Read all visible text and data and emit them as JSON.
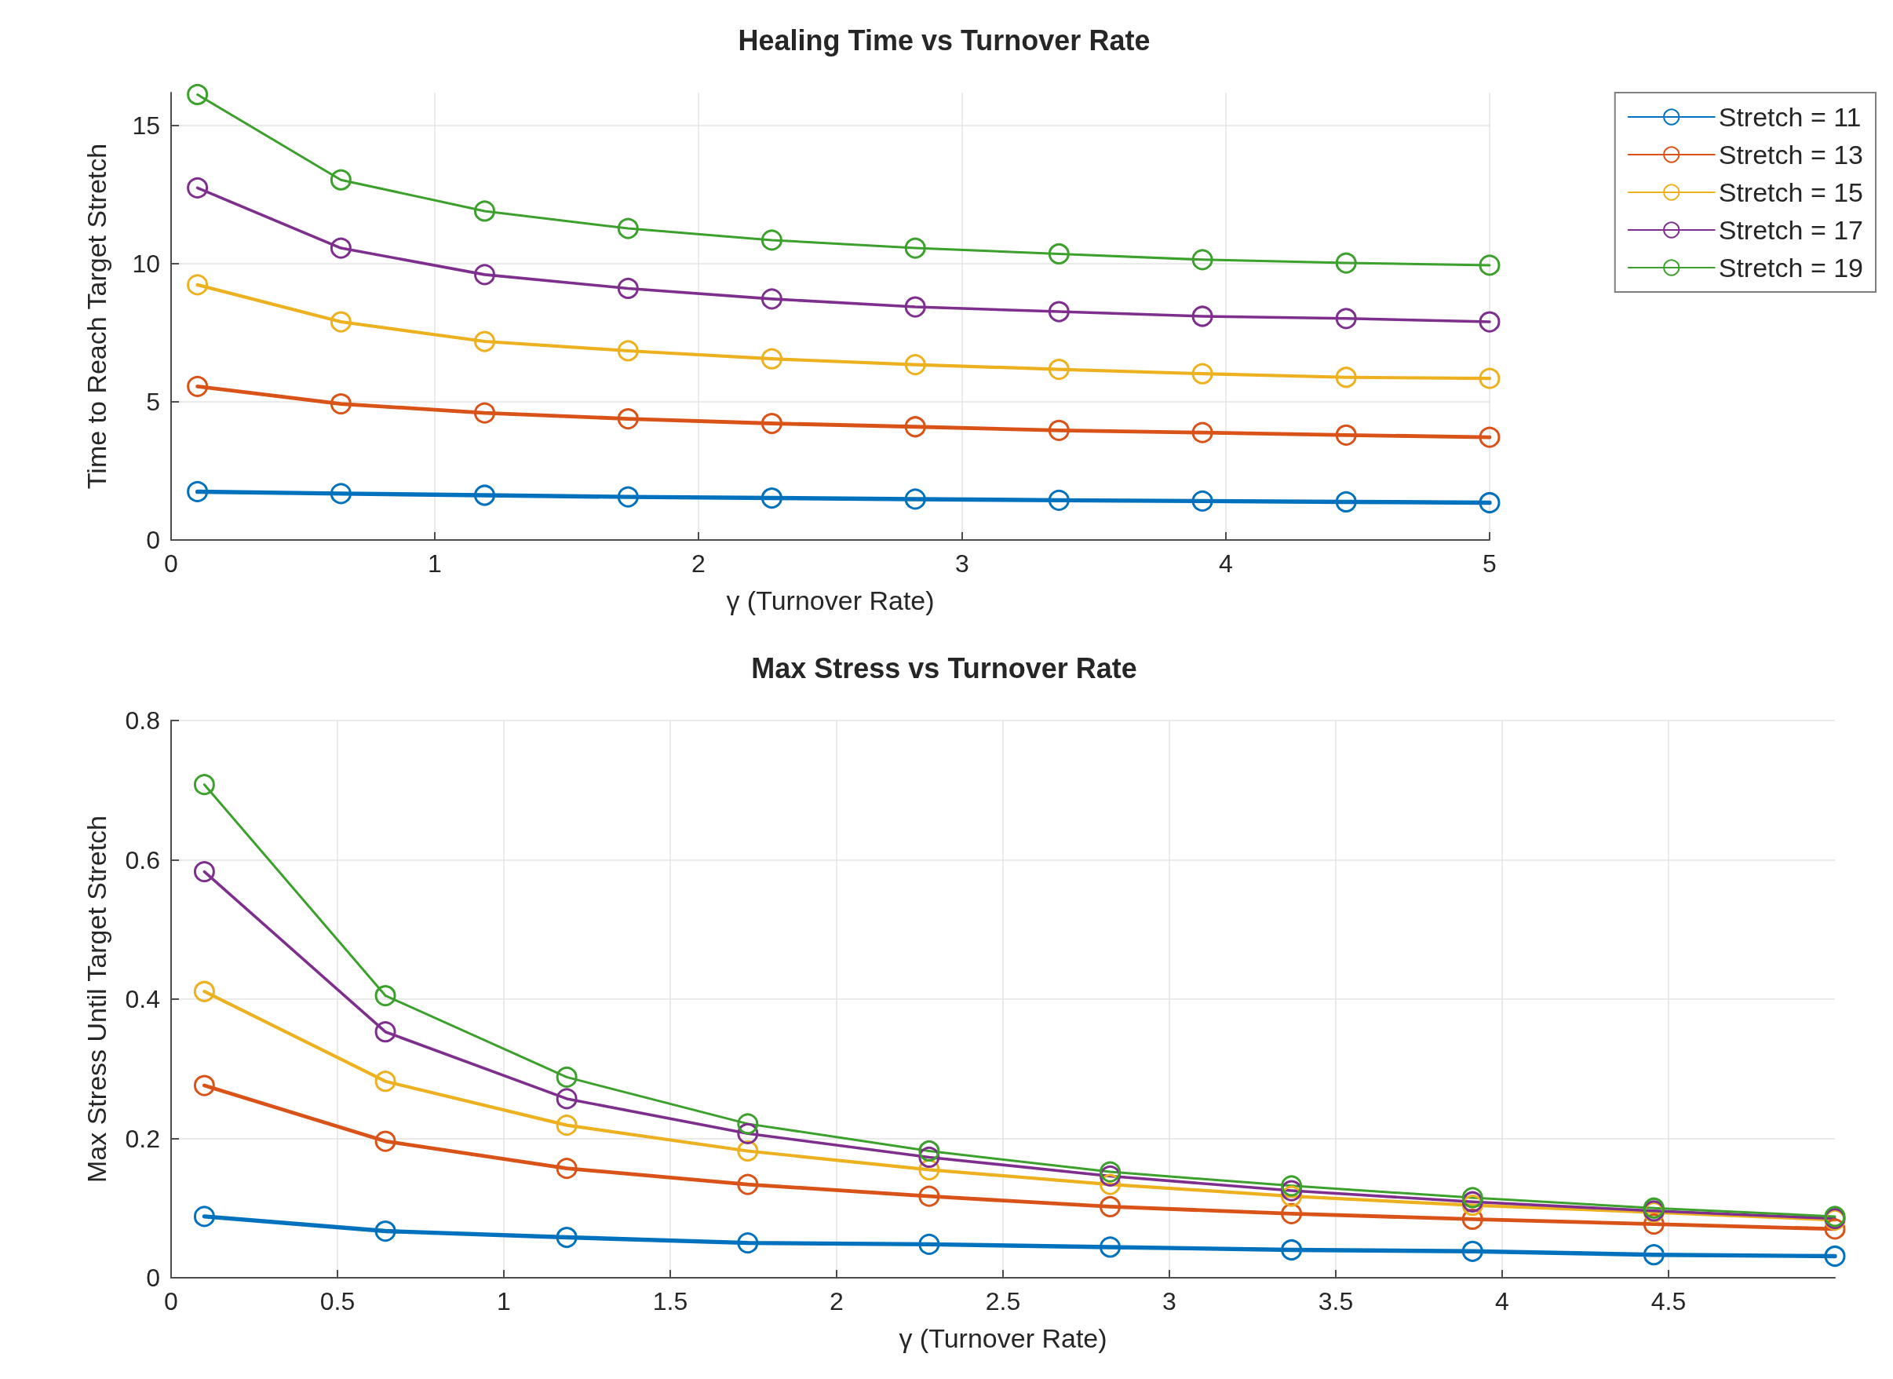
{
  "chart_data": [
    {
      "type": "line",
      "title": "Healing Time vs Turnover Rate",
      "xlabel": "γ (Turnover Rate)",
      "ylabel": "Time to Reach Target Stretch",
      "x": [
        0.1,
        0.644,
        1.189,
        1.733,
        2.278,
        2.822,
        3.367,
        3.911,
        4.456,
        5.0
      ],
      "xlim": [
        0,
        5
      ],
      "xticks": [
        0,
        1,
        2,
        3,
        4,
        5
      ],
      "ylim": [
        0,
        16.2
      ],
      "yticks": [
        0,
        5,
        10,
        15
      ],
      "grid": true,
      "legend": "right",
      "marker": "circle",
      "line_style": "solid",
      "series": [
        {
          "name": "Stretch = 11",
          "color": "#0072bd",
          "values": [
            1.75,
            1.68,
            1.62,
            1.56,
            1.52,
            1.48,
            1.44,
            1.41,
            1.38,
            1.35
          ]
        },
        {
          "name": "Stretch = 13",
          "color": "#d95319",
          "values": [
            5.56,
            4.93,
            4.6,
            4.39,
            4.22,
            4.1,
            3.97,
            3.89,
            3.8,
            3.72
          ]
        },
        {
          "name": "Stretch = 15",
          "color": "#edb120",
          "values": [
            9.24,
            7.9,
            7.19,
            6.85,
            6.56,
            6.35,
            6.18,
            6.02,
            5.89,
            5.85
          ]
        },
        {
          "name": "Stretch = 17",
          "color": "#7e2f8e",
          "values": [
            12.75,
            10.57,
            9.61,
            9.11,
            8.73,
            8.44,
            8.27,
            8.1,
            8.02,
            7.9
          ]
        },
        {
          "name": "Stretch = 19",
          "color": "#3ca02c",
          "values": [
            16.13,
            13.04,
            11.91,
            11.28,
            10.86,
            10.57,
            10.36,
            10.15,
            10.03,
            9.95
          ]
        }
      ]
    },
    {
      "type": "line",
      "title": "Max Stress vs Turnover Rate",
      "xlabel": "γ (Turnover Rate)",
      "ylabel": "Max Stress Until Target Stretch",
      "x": [
        0.1,
        0.644,
        1.189,
        1.733,
        2.278,
        2.822,
        3.367,
        3.911,
        4.456,
        5.0
      ],
      "xlim": [
        0,
        5
      ],
      "xticks": [
        0,
        0.5,
        1,
        1.5,
        2,
        2.5,
        3,
        3.5,
        4,
        4.5
      ],
      "ylim": [
        0,
        0.8
      ],
      "yticks": [
        0,
        0.2,
        0.4,
        0.6,
        0.8
      ],
      "grid": true,
      "marker": "circle",
      "line_style": "solid",
      "series": [
        {
          "color": "#0072bd",
          "values": [
            0.088,
            0.067,
            0.058,
            0.05,
            0.048,
            0.044,
            0.04,
            0.038,
            0.033,
            0.031
          ]
        },
        {
          "color": "#d95319",
          "values": [
            0.276,
            0.196,
            0.157,
            0.134,
            0.117,
            0.102,
            0.092,
            0.084,
            0.077,
            0.07
          ]
        },
        {
          "color": "#edb120",
          "values": [
            0.411,
            0.282,
            0.219,
            0.182,
            0.155,
            0.134,
            0.117,
            0.104,
            0.094,
            0.083
          ]
        },
        {
          "color": "#7e2f8e",
          "values": [
            0.583,
            0.353,
            0.257,
            0.207,
            0.173,
            0.146,
            0.125,
            0.109,
            0.096,
            0.085
          ]
        },
        {
          "color": "#3ca02c",
          "values": [
            0.708,
            0.405,
            0.288,
            0.221,
            0.182,
            0.152,
            0.132,
            0.115,
            0.1,
            0.088
          ]
        }
      ]
    }
  ]
}
